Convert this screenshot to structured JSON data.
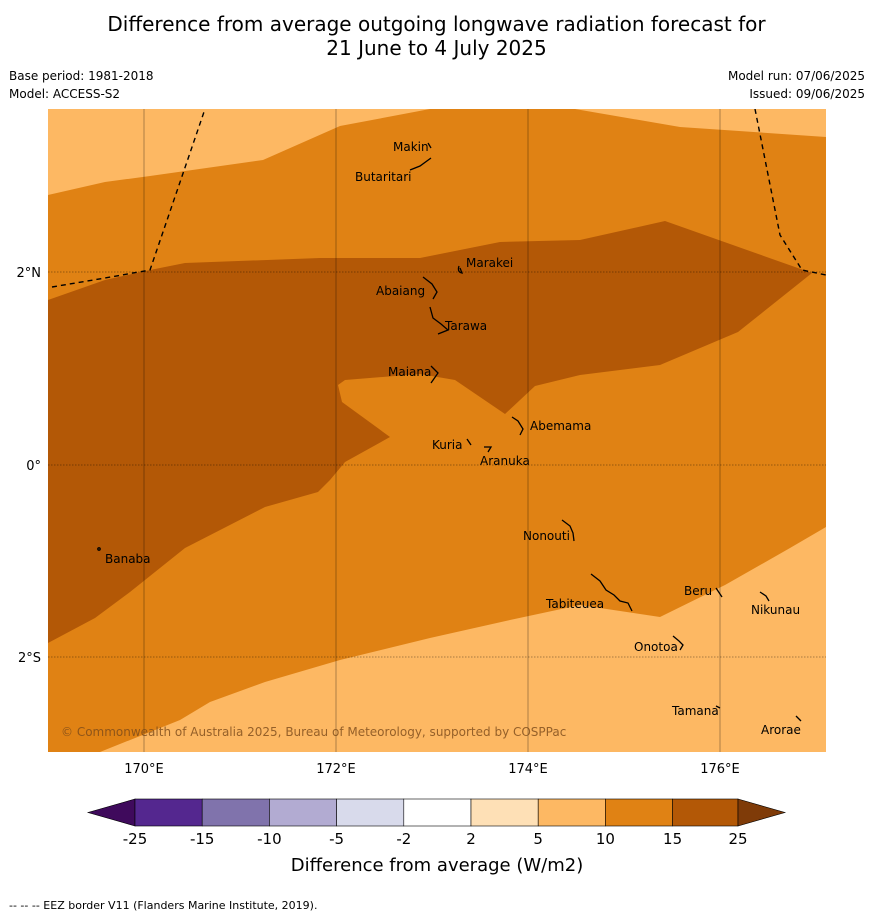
{
  "title_line1": "Difference from average outgoing longwave radiation forecast for",
  "title_line2": "21 June to 4 July 2025",
  "base_period": "Base period: 1981-2018",
  "model": "Model: ACCESS-S2",
  "model_run": "Model run: 07/06/2025",
  "issued": "Issued: 09/06/2025",
  "x_ticks": [
    "170°E",
    "172°E",
    "174°E",
    "176°E"
  ],
  "y_ticks": [
    "2°N",
    "0°",
    "2°S"
  ],
  "places": [
    "Makin",
    "Butaritari",
    "Marakei",
    "Abaiang",
    "Tarawa",
    "Maiana",
    "Abemama",
    "Kuria",
    "Aranuka",
    "Nonouti",
    "Banaba",
    "Beru",
    "Nikunau",
    "Tabiteuea",
    "Onotoa",
    "Tamana",
    "Arorae"
  ],
  "copyright": "© Commonwealth of Australia 2025, Bureau of Meteorology, supported by COSPPac",
  "colorbar": {
    "label": "Difference from average (W/m2)",
    "ticks": [
      "-25",
      "-15",
      "-10",
      "-5",
      "-2",
      "2",
      "5",
      "10",
      "15",
      "25"
    ],
    "colors": [
      "#3f0a5c",
      "#54278f",
      "#8073ac",
      "#b2abd2",
      "#d8daeb",
      "#ffffff",
      "#fee0b6",
      "#fdb863",
      "#e08214",
      "#b35806",
      "#7f3b08"
    ]
  },
  "fill_colors": {
    "light": "#fdb863",
    "mid": "#e08214",
    "dark": "#b35806"
  },
  "footnote": "--  --  -- EEZ border V11 (Flanders Marine Institute, 2019)."
}
